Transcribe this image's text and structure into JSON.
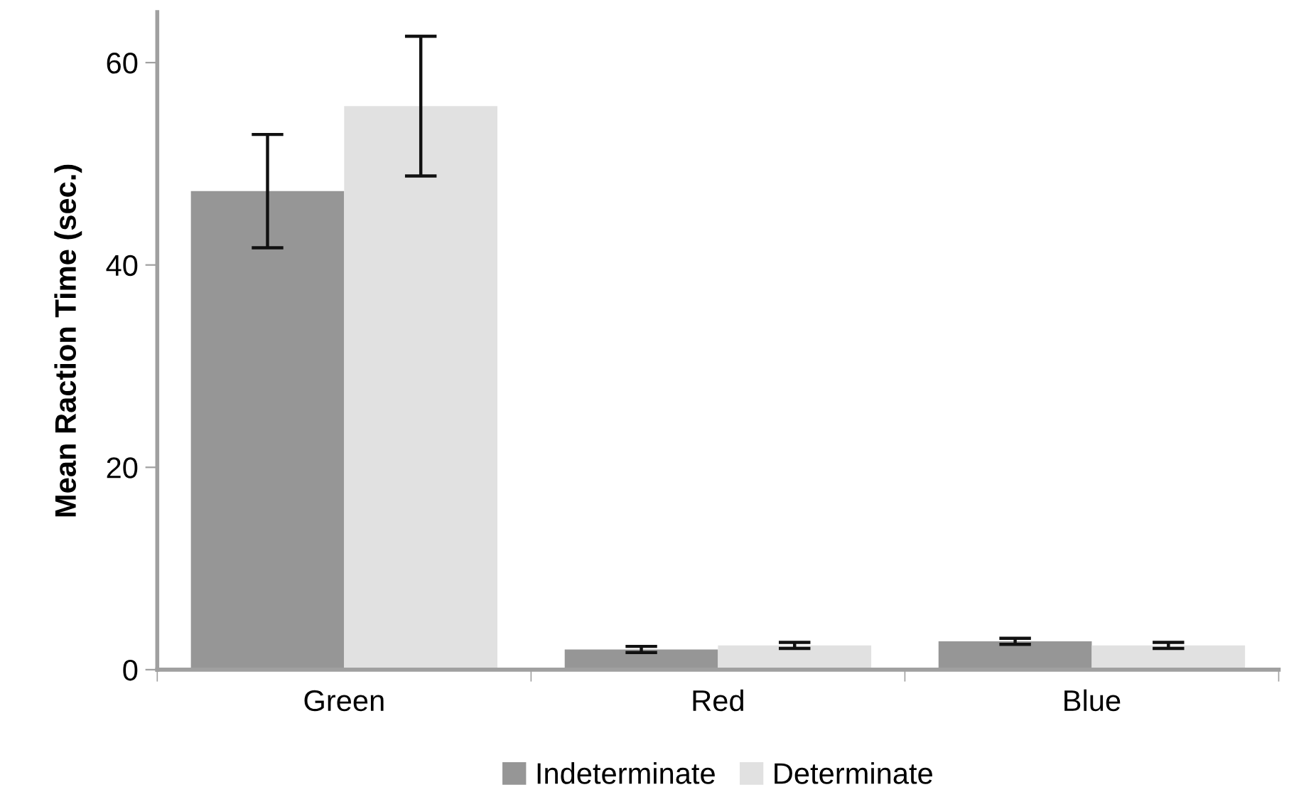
{
  "chart_data": {
    "type": "bar",
    "ylabel": "Mean Raction Time (sec.)",
    "categories": [
      "Green",
      "Red",
      "Blue"
    ],
    "series": [
      {
        "name": "Indeterminate",
        "color": "#969696",
        "values": [
          47.3,
          2.0,
          2.8
        ],
        "errors": [
          5.6,
          0.3,
          0.3
        ]
      },
      {
        "name": "Determinate",
        "color": "#e1e1e1",
        "values": [
          55.7,
          2.4,
          2.4
        ],
        "errors": [
          6.9,
          0.3,
          0.3
        ]
      }
    ],
    "ylim": [
      0,
      65
    ],
    "yticks": [
      0,
      20,
      40,
      60
    ],
    "grid": false,
    "legend": "bottom"
  }
}
